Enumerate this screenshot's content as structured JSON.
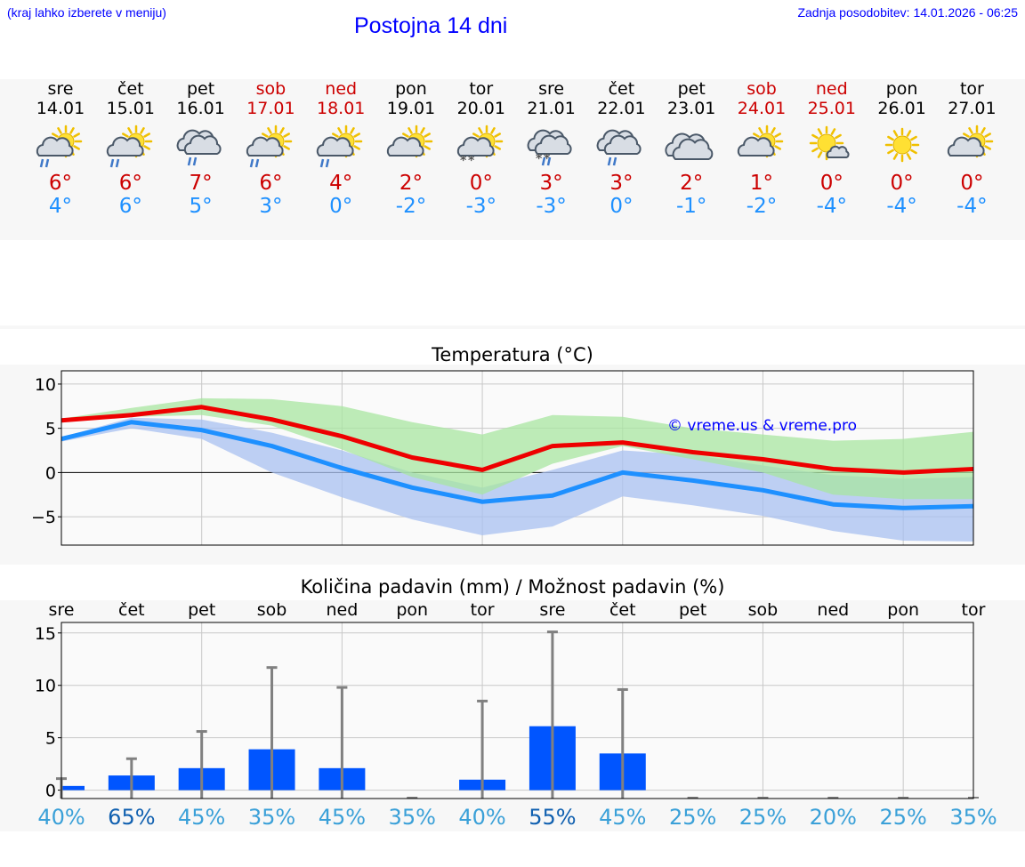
{
  "header": {
    "hint": "(kraj lahko izberete v meniju)",
    "title": "Postojna 14 dni",
    "updated": "Zadnja posodobitev: 14.01.2026 - 06:25"
  },
  "days": [
    {
      "name": "sre",
      "date": "14.01",
      "weekend": false,
      "icon": "sun-cloud-rain-icon",
      "tmax": "6°",
      "tmin": "4°"
    },
    {
      "name": "čet",
      "date": "15.01",
      "weekend": false,
      "icon": "sun-cloud-rain-icon",
      "tmax": "6°",
      "tmin": "6°"
    },
    {
      "name": "pet",
      "date": "16.01",
      "weekend": false,
      "icon": "cloud-rain-icon",
      "tmax": "7°",
      "tmin": "5°"
    },
    {
      "name": "sob",
      "date": "17.01",
      "weekend": true,
      "icon": "sun-cloud-rain-icon",
      "tmax": "6°",
      "tmin": "3°"
    },
    {
      "name": "ned",
      "date": "18.01",
      "weekend": true,
      "icon": "sun-cloud-rain-icon",
      "tmax": "4°",
      "tmin": "0°"
    },
    {
      "name": "pon",
      "date": "19.01",
      "weekend": false,
      "icon": "sun-cloud-icon",
      "tmax": "2°",
      "tmin": "-2°"
    },
    {
      "name": "tor",
      "date": "20.01",
      "weekend": false,
      "icon": "sun-cloud-snow-icon",
      "tmax": "0°",
      "tmin": "-3°"
    },
    {
      "name": "sre",
      "date": "21.01",
      "weekend": false,
      "icon": "cloud-sleet-icon",
      "tmax": "3°",
      "tmin": "-3°"
    },
    {
      "name": "čet",
      "date": "22.01",
      "weekend": false,
      "icon": "cloud-rain-icon",
      "tmax": "3°",
      "tmin": "0°"
    },
    {
      "name": "pet",
      "date": "23.01",
      "weekend": false,
      "icon": "cloud-icon",
      "tmax": "2°",
      "tmin": "-1°"
    },
    {
      "name": "sob",
      "date": "24.01",
      "weekend": true,
      "icon": "sun-cloud-icon",
      "tmax": "1°",
      "tmin": "-2°"
    },
    {
      "name": "ned",
      "date": "25.01",
      "weekend": true,
      "icon": "sun-small-cloud-icon",
      "tmax": "0°",
      "tmin": "-4°"
    },
    {
      "name": "pon",
      "date": "26.01",
      "weekend": false,
      "icon": "sun-icon",
      "tmax": "0°",
      "tmin": "-4°"
    },
    {
      "name": "tor",
      "date": "27.01",
      "weekend": false,
      "icon": "sun-cloud-icon",
      "tmax": "0°",
      "tmin": "-4°"
    }
  ],
  "colors": {
    "max": "#ee0000",
    "min": "#1e90ff",
    "max_band": "#a8e6a0",
    "min_band": "#a8c0f0",
    "bar": "#0055ff",
    "whisker": "#808080"
  },
  "chart_data": [
    {
      "type": "line",
      "title": "Temperatura (°C)",
      "watermark": "© vreme.us & vreme.pro",
      "ylim": [
        -8.2,
        11.5
      ],
      "yticks": [
        10,
        5,
        0,
        -5
      ],
      "ytick_labels": [
        "10",
        "5",
        "0",
        "−5"
      ],
      "x": [
        0,
        1,
        2,
        3,
        4,
        5,
        6,
        7,
        8,
        9,
        10,
        11,
        12,
        13
      ],
      "series": [
        {
          "name": "max",
          "values": [
            5.9,
            6.5,
            7.4,
            6,
            4.1,
            1.7,
            0.3,
            3,
            3.4,
            2.3,
            1.5,
            0.4,
            0,
            0.4
          ],
          "band_low": [
            6,
            6.3,
            6.5,
            5.3,
            2.6,
            -0.5,
            -2.5,
            1,
            3,
            1.5,
            0,
            -2.5,
            -3,
            -3
          ],
          "band_high": [
            6.1,
            7.3,
            8.4,
            8.3,
            7.5,
            5.7,
            4.3,
            6.5,
            6.3,
            5,
            4.3,
            3.6,
            3.8,
            4.6
          ]
        },
        {
          "name": "min",
          "values": [
            3.8,
            5.7,
            4.8,
            3,
            0.5,
            -1.7,
            -3.3,
            -2.6,
            0,
            -0.9,
            -2,
            -3.6,
            -4,
            -3.8
          ],
          "band_low": [
            3.5,
            5,
            3.8,
            0,
            -2.8,
            -5.3,
            -7.1,
            -6.1,
            -2.7,
            -3.7,
            -4.9,
            -6.6,
            -7.7,
            -7.8
          ],
          "band_high": [
            4,
            6.2,
            6,
            4.5,
            2.5,
            0,
            -1.7,
            0.3,
            2.5,
            2,
            0.8,
            -0.3,
            -0.7,
            -0.5
          ]
        }
      ]
    },
    {
      "type": "bar",
      "title": "Količina padavin (mm) / Možnost padavin (%)",
      "categories": [
        "sre",
        "čet",
        "pet",
        "sob",
        "ned",
        "pon",
        "tor",
        "sre",
        "čet",
        "pet",
        "sob",
        "ned",
        "pon",
        "tor"
      ],
      "ylim": [
        -0.8,
        16
      ],
      "yticks": [
        15,
        10,
        5,
        0
      ],
      "values": [
        0.4,
        1.4,
        2.1,
        3.9,
        2.1,
        0,
        1,
        6.1,
        3.5,
        0,
        0,
        0,
        0,
        0
      ],
      "whisker_high": [
        1.1,
        3,
        5.6,
        11.7,
        9.8,
        0,
        8.5,
        15.1,
        9.6,
        0,
        0,
        0,
        0,
        0
      ],
      "probability": [
        "40%",
        "65%",
        "45%",
        "35%",
        "45%",
        "35%",
        "40%",
        "55%",
        "45%",
        "25%",
        "25%",
        "20%",
        "25%",
        "35%"
      ],
      "probability_bold": [
        false,
        true,
        false,
        false,
        false,
        false,
        false,
        true,
        false,
        false,
        false,
        false,
        false,
        false
      ]
    }
  ]
}
